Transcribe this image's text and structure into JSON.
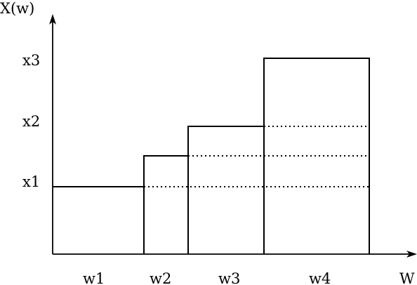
{
  "axes": {
    "y_label": "X(w)",
    "x_label": "W"
  },
  "y_ticks": [
    "x3",
    "x2",
    "x1"
  ],
  "x_ticks": [
    "w1",
    "w2",
    "w3",
    "w4"
  ]
}
